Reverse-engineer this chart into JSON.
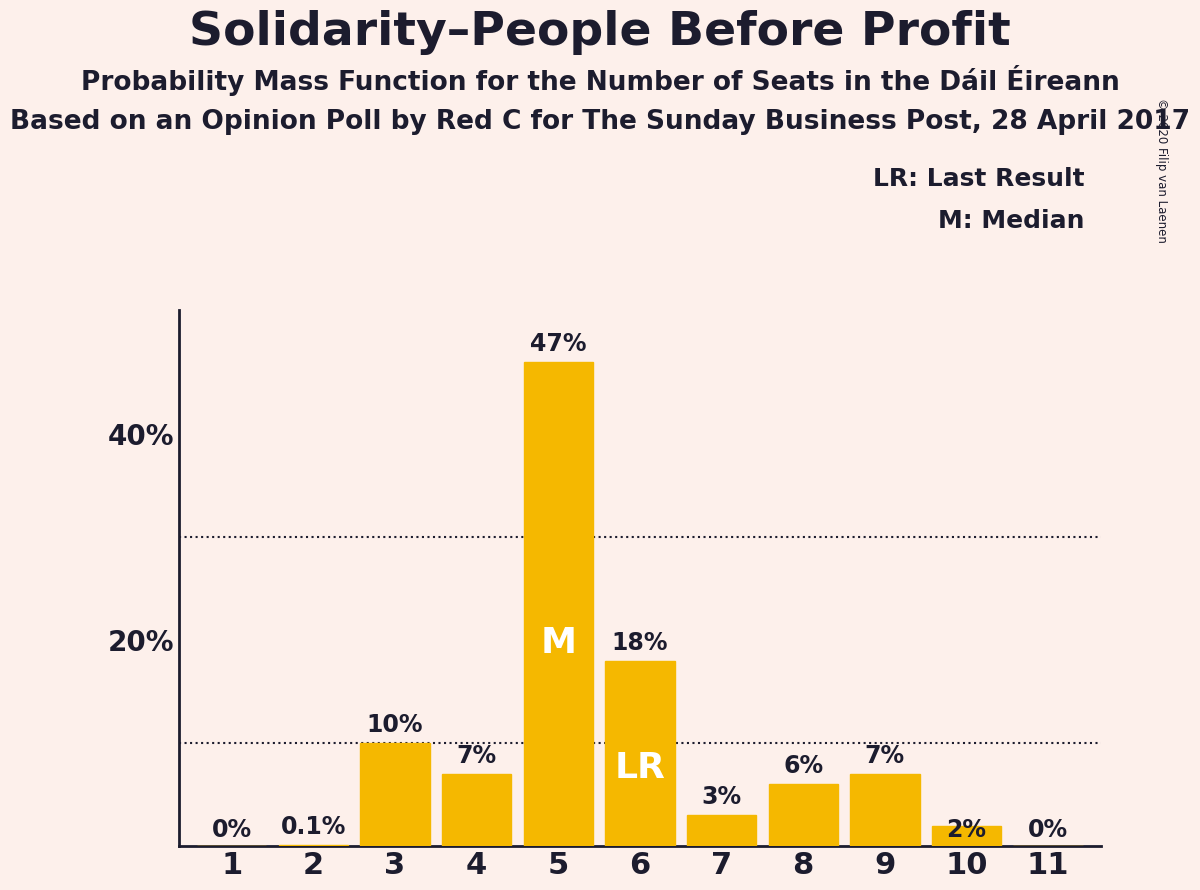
{
  "title": "Solidarity–People Before Profit",
  "subtitle1": "Probability Mass Function for the Number of Seats in the Dáil Éireann",
  "subtitle2": "Based on an Opinion Poll by Red C for The Sunday Business Post, 28 April 2017",
  "copyright": "© 2020 Filip van Laenen",
  "categories": [
    1,
    2,
    3,
    4,
    5,
    6,
    7,
    8,
    9,
    10,
    11
  ],
  "values": [
    0.0,
    0.001,
    0.1,
    0.07,
    0.47,
    0.18,
    0.03,
    0.06,
    0.07,
    0.02,
    0.0
  ],
  "labels": [
    "0%",
    "0.1%",
    "10%",
    "7%",
    "47%",
    "18%",
    "3%",
    "6%",
    "7%",
    "2%",
    "0%"
  ],
  "bar_color": "#F5B800",
  "background_color": "#FDF0EB",
  "text_color": "#1C1C2E",
  "median_seat": 5,
  "lr_seat": 6,
  "median_label": "M",
  "lr_label": "LR",
  "annotation_color": "#FFFFFF",
  "legend_lr": "LR: Last Result",
  "legend_m": "M: Median",
  "ylim": [
    0,
    0.52
  ],
  "dotted_lines": [
    0.1,
    0.3
  ],
  "title_fontsize": 34,
  "subtitle_fontsize": 19,
  "label_fontsize": 17,
  "annotation_fontsize": 26,
  "tick_fontsize": 20,
  "ytick_positions": [
    0.2,
    0.4
  ],
  "ytick_labels": [
    "20%",
    "40%"
  ]
}
